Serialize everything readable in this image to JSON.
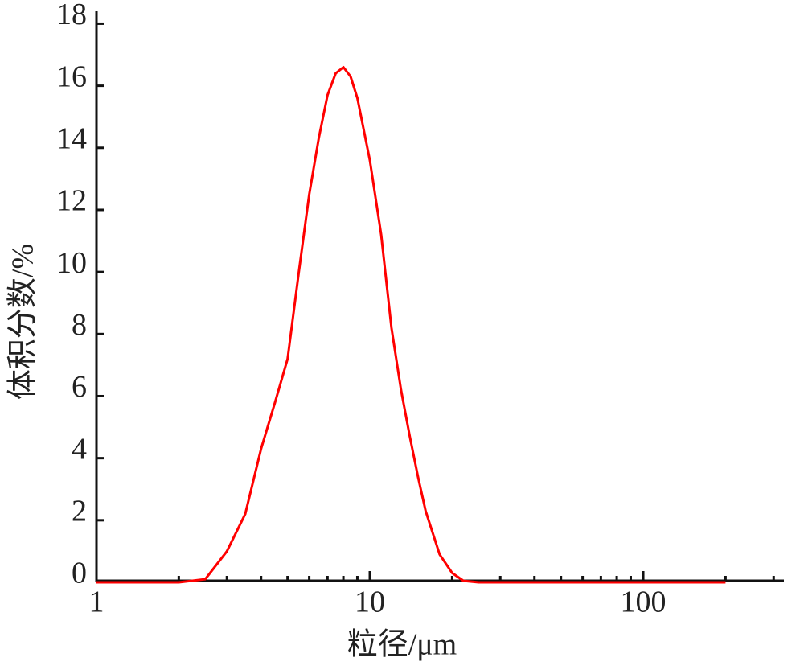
{
  "chart_data": {
    "type": "line",
    "log_x": true,
    "x_label": "粒径/μm",
    "y_label": "体积分数/%",
    "x": [
      1,
      2,
      2.5,
      3,
      3.5,
      4,
      4.5,
      5,
      5.5,
      6,
      6.5,
      7,
      7.5,
      8,
      8.5,
      9,
      10,
      11,
      12,
      13,
      14,
      15,
      16,
      18,
      20,
      22,
      25,
      50,
      100,
      200
    ],
    "series": [
      {
        "color": "#ff0000",
        "values": [
          0,
          0,
          0.1,
          1.0,
          2.2,
          4.3,
          5.8,
          7.2,
          10.0,
          12.5,
          14.3,
          15.7,
          16.4,
          16.6,
          16.3,
          15.6,
          13.6,
          11.2,
          8.2,
          6.2,
          4.7,
          3.4,
          2.3,
          0.9,
          0.3,
          0.05,
          0,
          0,
          0,
          0
        ]
      }
    ],
    "xlim": [
      1,
      327
    ],
    "xticks": [
      1,
      10,
      100
    ],
    "xminorticks": [
      2,
      3,
      4,
      5,
      6,
      7,
      8,
      9,
      20,
      30,
      40,
      50,
      60,
      70,
      80,
      90,
      200,
      300
    ],
    "ylim": [
      0,
      18.4
    ],
    "yticks": [
      0,
      2,
      4,
      6,
      8,
      10,
      12,
      14,
      16,
      18
    ],
    "grid": false
  }
}
